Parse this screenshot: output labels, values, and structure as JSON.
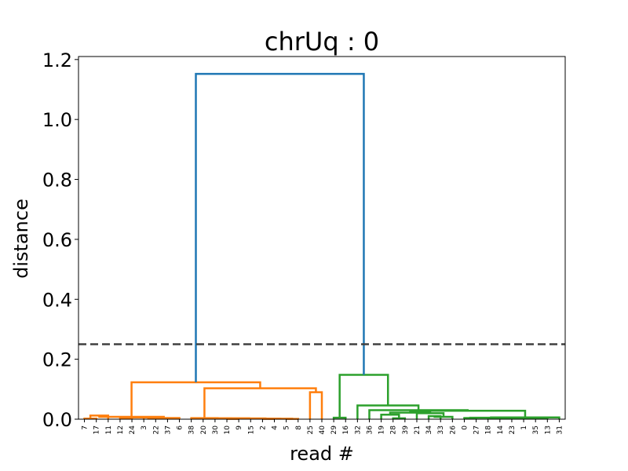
{
  "chart_data": {
    "type": "dendrogram",
    "title": "chrUq : 0",
    "xlabel": "read #",
    "ylabel": "distance",
    "ylim": [
      0,
      1.21
    ],
    "yticks": [
      "0.0",
      "0.2",
      "0.4",
      "0.6",
      "0.8",
      "1.0",
      "1.2"
    ],
    "ytick_values": [
      0,
      0.2,
      0.4,
      0.6,
      0.8,
      1.0,
      1.2
    ],
    "leaves": [
      "7",
      "17",
      "11",
      "12",
      "24",
      "3",
      "22",
      "37",
      "6",
      "38",
      "20",
      "30",
      "10",
      "9",
      "15",
      "2",
      "4",
      "5",
      "8",
      "25",
      "40",
      "29",
      "16",
      "32",
      "36",
      "19",
      "28",
      "39",
      "21",
      "34",
      "33",
      "26",
      "0",
      "27",
      "18",
      "14",
      "23",
      "1",
      "35",
      "13",
      "31"
    ],
    "threshold": 0.25,
    "threshold_style": "dashed",
    "colors": {
      "orange": "#ff7f0e",
      "green": "#2ca02c",
      "blue": "#1f77b4",
      "threshold": "#404040"
    },
    "links": [
      {
        "color": "orange",
        "left": 0,
        "right": 1,
        "height": 0.002
      },
      {
        "color": "orange",
        "left": 0.5,
        "right": 2,
        "height": 0.012
      },
      {
        "color": "orange",
        "left": 3,
        "right": 4,
        "height": 0.003
      },
      {
        "color": "orange",
        "left": 3.5,
        "right": 5,
        "height": 0.006
      },
      {
        "color": "orange",
        "left": 6,
        "right": 7,
        "height": 0.002
      },
      {
        "color": "orange",
        "left": 4.25,
        "right": 6.5,
        "height": 0.006
      },
      {
        "color": "orange",
        "left": 5.375,
        "right": 8,
        "height": 0.004
      },
      {
        "color": "orange",
        "left": 1.25,
        "right": 6.6875,
        "height": 0.008
      },
      {
        "color": "orange",
        "left": 12,
        "right": 13,
        "height": 0.001
      },
      {
        "color": "orange",
        "left": 15,
        "right": 16,
        "height": 0.001
      },
      {
        "color": "orange",
        "left": 17,
        "right": 18,
        "height": 0.001
      },
      {
        "color": "orange",
        "left": 15.5,
        "right": 17.5,
        "height": 0.0015
      },
      {
        "color": "orange",
        "left": 14,
        "right": 16.5,
        "height": 0.002
      },
      {
        "color": "orange",
        "left": 12.5,
        "right": 15.25,
        "height": 0.0025
      },
      {
        "color": "orange",
        "left": 11,
        "right": 13.875,
        "height": 0.003
      },
      {
        "color": "orange",
        "left": 10,
        "right": 12.4375,
        "height": 0.003
      },
      {
        "color": "orange",
        "left": 9,
        "right": 11.21875,
        "height": 0.0035
      },
      {
        "color": "orange",
        "left": 19,
        "right": 20,
        "height": 0.09
      },
      {
        "color": "orange",
        "left": 10.109375,
        "right": 19.5,
        "height": 0.103
      },
      {
        "color": "orange",
        "left": 3.96875,
        "right": 14.8046875,
        "height": 0.123
      },
      {
        "color": "green",
        "left": 26,
        "right": 27,
        "height": 0.003
      },
      {
        "color": "green",
        "left": 25,
        "right": 26.5,
        "height": 0.015
      },
      {
        "color": "green",
        "left": 29,
        "right": 30,
        "height": 0.01
      },
      {
        "color": "green",
        "left": 29.5,
        "right": 31,
        "height": 0.008
      },
      {
        "color": "green",
        "left": 28,
        "right": 30.25,
        "height": 0.02
      },
      {
        "color": "green",
        "left": 25.75,
        "right": 29.125,
        "height": 0.022
      },
      {
        "color": "green",
        "left": 32,
        "right": 33,
        "height": 0.004
      },
      {
        "color": "green",
        "left": 34,
        "right": 35,
        "height": 0.003
      },
      {
        "color": "green",
        "left": 36,
        "right": 37,
        "height": 0.003
      },
      {
        "color": "green",
        "left": 38,
        "right": 39,
        "height": 0.002
      },
      {
        "color": "green",
        "left": 36.5,
        "right": 38.5,
        "height": 0.004
      },
      {
        "color": "green",
        "left": 34.5,
        "right": 37.5,
        "height": 0.004
      },
      {
        "color": "green",
        "left": 32.5,
        "right": 36,
        "height": 0.005
      },
      {
        "color": "green",
        "left": 34.25,
        "right": 40,
        "height": 0.006
      },
      {
        "color": "green",
        "left": 27.4375,
        "right": 37.125,
        "height": 0.028
      },
      {
        "color": "green",
        "left": 24,
        "right": 32.28125,
        "height": 0.03
      },
      {
        "color": "green",
        "left": 23,
        "right": 28.140625,
        "height": 0.046
      },
      {
        "color": "green",
        "left": 21,
        "right": 22,
        "height": 0.005
      },
      {
        "color": "green",
        "left": 21.5,
        "right": 25.5703125,
        "height": 0.148
      },
      {
        "color": "blue",
        "left": 9.38671875,
        "right": 23.53515625,
        "height": 1.152
      }
    ]
  }
}
